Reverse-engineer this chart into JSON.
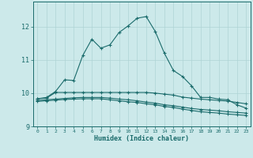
{
  "xlabel": "Humidex (Indice chaleur)",
  "bg_color": "#cce9ea",
  "line_color": "#1a6b6b",
  "grid_color": "#aed4d5",
  "xlim": [
    -0.5,
    23.5
  ],
  "ylim": [
    9.0,
    12.75
  ],
  "yticks": [
    9,
    10,
    11,
    12
  ],
  "xticks": [
    0,
    1,
    2,
    3,
    4,
    5,
    6,
    7,
    8,
    9,
    10,
    11,
    12,
    13,
    14,
    15,
    16,
    17,
    18,
    19,
    20,
    21,
    22,
    23
  ],
  "line1_x": [
    0,
    1,
    2,
    3,
    4,
    5,
    6,
    7,
    8,
    9,
    10,
    11,
    12,
    13,
    14,
    15,
    16,
    17,
    18,
    19,
    20,
    21,
    22,
    23
  ],
  "line1_y": [
    9.83,
    9.87,
    10.05,
    10.4,
    10.38,
    11.13,
    11.62,
    11.35,
    11.45,
    11.82,
    12.02,
    12.25,
    12.3,
    11.85,
    11.2,
    10.68,
    10.5,
    10.22,
    9.87,
    9.87,
    9.82,
    9.8,
    9.65,
    9.55
  ],
  "line2_x": [
    0,
    1,
    2,
    3,
    4,
    5,
    6,
    7,
    8,
    9,
    10,
    11,
    12,
    13,
    14,
    15,
    16,
    17,
    18,
    19,
    20,
    21,
    22,
    23
  ],
  "line2_y": [
    9.83,
    9.85,
    10.02,
    10.02,
    10.02,
    10.02,
    10.02,
    10.02,
    10.02,
    10.02,
    10.02,
    10.02,
    10.02,
    10.0,
    9.97,
    9.94,
    9.88,
    9.85,
    9.82,
    9.8,
    9.78,
    9.76,
    9.72,
    9.68
  ],
  "line3_x": [
    0,
    1,
    2,
    3,
    4,
    5,
    6,
    7,
    8,
    9,
    10,
    11,
    12,
    13,
    14,
    15,
    16,
    17,
    18,
    19,
    20,
    21,
    22,
    23
  ],
  "line3_y": [
    9.78,
    9.8,
    9.82,
    9.84,
    9.86,
    9.87,
    9.87,
    9.87,
    9.85,
    9.82,
    9.8,
    9.77,
    9.73,
    9.7,
    9.65,
    9.62,
    9.58,
    9.54,
    9.51,
    9.49,
    9.47,
    9.44,
    9.42,
    9.4
  ],
  "line4_x": [
    0,
    1,
    2,
    3,
    4,
    5,
    6,
    7,
    8,
    9,
    10,
    11,
    12,
    13,
    14,
    15,
    16,
    17,
    18,
    19,
    20,
    21,
    22,
    23
  ],
  "line4_y": [
    9.75,
    9.77,
    9.79,
    9.81,
    9.82,
    9.83,
    9.83,
    9.83,
    9.8,
    9.77,
    9.74,
    9.72,
    9.68,
    9.65,
    9.6,
    9.57,
    9.52,
    9.48,
    9.44,
    9.42,
    9.4,
    9.37,
    9.35,
    9.33
  ]
}
